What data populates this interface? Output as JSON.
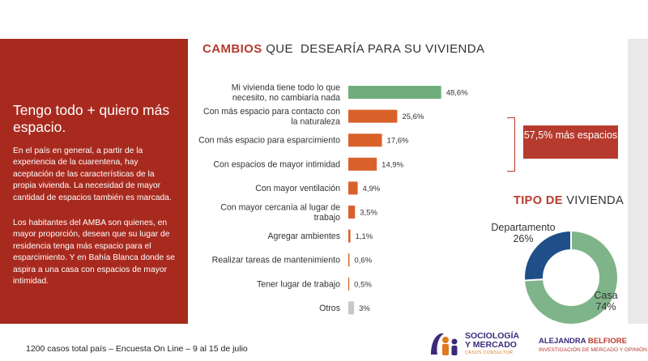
{
  "panel": {
    "heading": "Tengo todo + quiero más espacio.",
    "paragraph1": "En el país en general, a partir de la experiencia de la cuarentena, hay aceptación de las características de la propia vivienda. La necesidad de mayor cantidad de espacios también es marcada.",
    "paragraph2": "Los habitantes del AMBA son quienes, en mayor proporción, desean que su lugar de residencia tenga más espacio para el esparcimiento. Y en Bahía Blanca donde se aspira a una casa con espacios de mayor intimidad."
  },
  "callout": "57,5% más espacios",
  "footer": "1200 casos total país – Encuesta On Line – 9 al 15 de julio",
  "logos": {
    "sociologia_line1": "SOCIOLOGÍA",
    "sociologia_line2": "Y MERCADO",
    "sociologia_sub": "CASOS CONSULTOR",
    "consultant_first": "ALEJANDRA",
    "consultant_last": "BELFIORE",
    "consultant_sub": "INVESTIGACIÓN DE MERCADO Y OPINIÓN"
  },
  "colors": {
    "panel": "#a82a1f",
    "accent": "#b73a2e",
    "bar_green": "#6fae7c",
    "bar_orange": "#d9622b",
    "bar_gray": "#c8c8c8",
    "donut_blue": "#1f4e89",
    "donut_green": "#7fb48a"
  },
  "chart_data": [
    {
      "type": "bar",
      "orientation": "horizontal",
      "title_bold": "CAMBIOS",
      "title_rest": " QUE  DESEARÍA PARA SU VIVIENDA",
      "categories": [
        [
          "Mi vivienda tiene todo lo que",
          "necesito, no cambiaría nada"
        ],
        [
          "Con más espacio para contacto con",
          "la naturaleza"
        ],
        [
          "Con más espacio para esparcimiento"
        ],
        [
          "Con espacios de mayor intimidad"
        ],
        [
          "Con mayor ventilación"
        ],
        [
          "Con mayor cercanía al lugar de",
          "trabajo"
        ],
        [
          "Agregar ambientes"
        ],
        [
          "Realizar tareas de mantenimiento"
        ],
        [
          "Tener lugar de trabajo"
        ],
        [
          "Otros"
        ]
      ],
      "values": [
        48.6,
        25.6,
        17.6,
        14.9,
        4.9,
        3.5,
        1.1,
        0.6,
        0.5,
        3
      ],
      "value_labels": [
        "48,6%",
        "25,6%",
        "17,6%",
        "14,9%",
        "4,9%",
        "3,5%",
        "1,1%",
        "0,6%",
        "0,5%",
        "3%"
      ],
      "bar_colors": [
        "green",
        "orange",
        "orange",
        "orange",
        "orange",
        "orange",
        "orange",
        "orange",
        "orange",
        "gray"
      ],
      "xlim": [
        0,
        50
      ]
    },
    {
      "type": "pie",
      "variant": "donut",
      "title_bold": "TIPO DE",
      "title_rest": " VIVIENDA",
      "labels": [
        "Departamento",
        "Casa"
      ],
      "values": [
        26,
        74
      ],
      "value_labels": [
        "26%",
        "74%"
      ]
    }
  ]
}
